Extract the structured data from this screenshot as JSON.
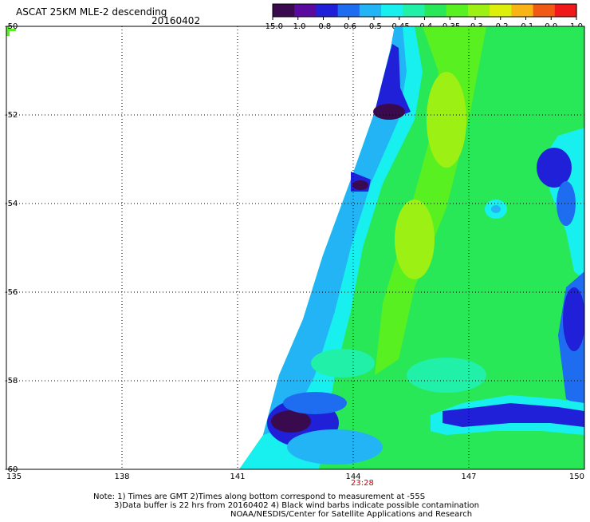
{
  "header": {
    "title": "ASCAT 25KM MLE-2 descending",
    "date": "20160402"
  },
  "colorbar": {
    "ticks": [
      "-15.0",
      "-1.0",
      "-0.8",
      "-0.6",
      "-0.5",
      "-0.45",
      "-0.4",
      "-0.35",
      "-0.3",
      "-0.2",
      "-0.1",
      "0.0",
      "1.0"
    ],
    "colors": [
      "#3a0a4e",
      "#5a0a9e",
      "#2020d8",
      "#1e6cf0",
      "#22b4f4",
      "#18f0f0",
      "#20f0a8",
      "#28e858",
      "#58f020",
      "#9cf014",
      "#dcf00c",
      "#f8b414",
      "#f05a14",
      "#f01818"
    ]
  },
  "map": {
    "lon_ticks": [
      "135",
      "138",
      "141",
      "144",
      "147",
      "150"
    ],
    "lat_ticks": [
      "-50",
      "-52",
      "-54",
      "-56",
      "-58",
      "-60"
    ],
    "time_label": "23:28",
    "swath_colors": {
      "dark": "#3a0a4e",
      "purple": "#5a0a9e",
      "blue": "#2020d8",
      "mid_blue": "#1e6cf0",
      "light_blue": "#22b4f4",
      "cyan": "#18f0f0",
      "teal": "#20f0a8",
      "green": "#28e858",
      "lime": "#58f020",
      "yellow_green": "#9cf014"
    },
    "time_label_color": "#cc0000"
  },
  "notes": [
    "Note: 1) Times are GMT 2)Times along bottom correspond to measurement at -55S",
    "3)Data buffer is 22 hrs from 20160402 4) Black wind barbs indicate possible contamination",
    "NOAA/NESDIS/Center for Satellite Applications and Research"
  ]
}
